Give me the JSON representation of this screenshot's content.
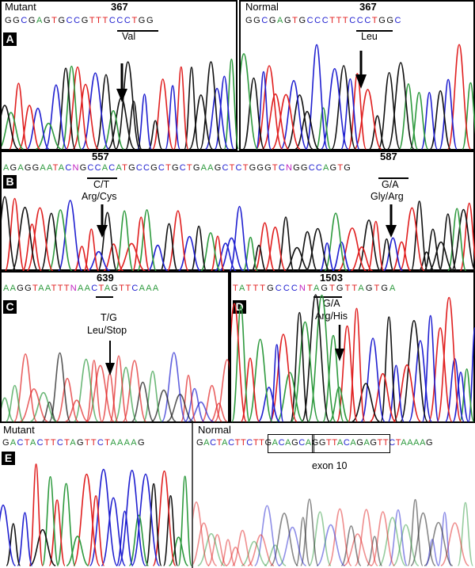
{
  "colors": {
    "A": "#2e9a3e",
    "C": "#2020d0",
    "G": "#111111",
    "T": "#e02020",
    "N": "#c020c0"
  },
  "panelA": {
    "tag": "A",
    "mutant": {
      "label": "Mutant",
      "seq": "GGCGAGTGCCGTTTCCCTGG",
      "position": "367",
      "amino": "Val"
    },
    "normal": {
      "label": "Normal",
      "seq": "GGCGAGTGCCCTTTCCCTGGC",
      "position": "367",
      "amino": "Leu"
    }
  },
  "panelB": {
    "tag": "B",
    "seq": "AGAGGAATACNGCCACATGCCGCTGCTGAAGCTCTGGGTCNGGCCAGTG",
    "mut1": {
      "position": "557",
      "change": "C/T",
      "amino": "Arg/Cys"
    },
    "mut2": {
      "position": "587",
      "change": "G/A",
      "amino": "Gly/Arg"
    }
  },
  "panelC": {
    "tag": "C",
    "seq": "AAGGTAATTTNAACTAGTTCAAA",
    "position": "639",
    "change": "T/G",
    "amino": "Leu/Stop"
  },
  "panelD": {
    "tag": "D",
    "seq": "TATTTGCCCNTAGTGTTAGTGA",
    "position": "1503",
    "change": "G/A",
    "amino": "Arg/His"
  },
  "panelE": {
    "tag": "E",
    "mutant": {
      "label": "Mutant",
      "seq": "GACTACTTCTAGTTCTAAAAG"
    },
    "normal": {
      "label": "Normal",
      "seq": "GACTACTTCTTGACAGCAGGTTACAGAGTTCTAAAAG",
      "exon": "exon 10"
    }
  }
}
